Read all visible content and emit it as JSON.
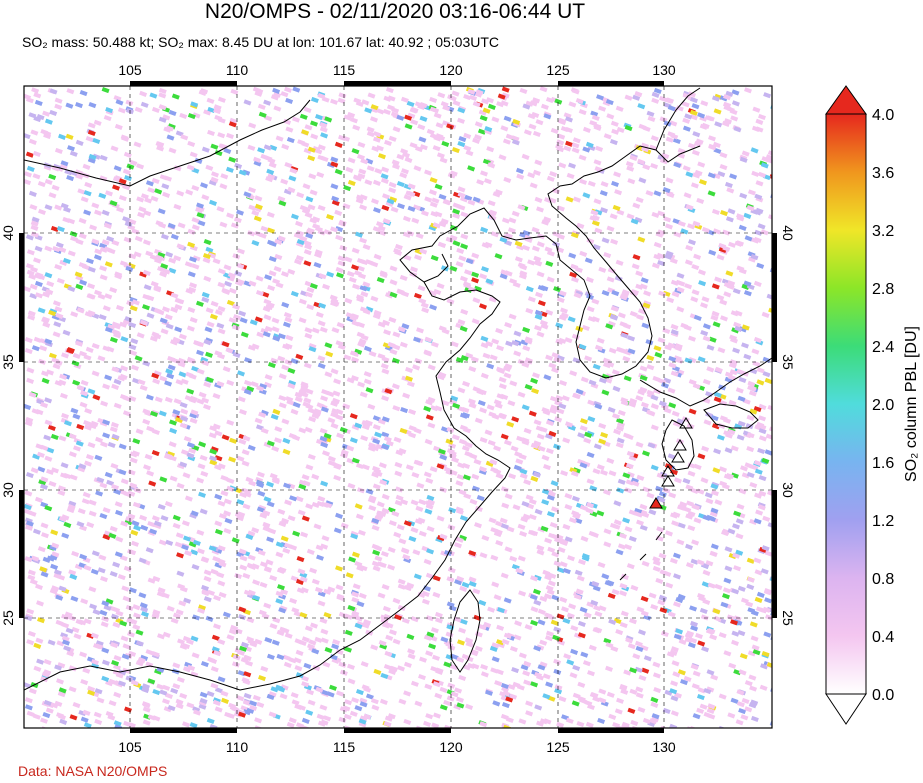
{
  "header": {
    "title": "N20/OMPS - 02/11/2020 03:16-06:44 UT",
    "subtitle": "SO₂ mass: 50.488 kt; SO₂ max: 8.45 DU at lon: 101.67 lat: 40.92 ; 05:03UTC"
  },
  "map": {
    "lon_range": [
      100,
      135
    ],
    "lat_range": [
      20,
      45
    ],
    "lon_ticks": [
      "105",
      "110",
      "115",
      "120",
      "125",
      "130"
    ],
    "lat_ticks": [
      "40",
      "35",
      "30",
      "25"
    ],
    "gridlines": "dashed",
    "volcano_markers": "triangle-icon"
  },
  "colorbar": {
    "title": "SO₂ column PBL [DU]",
    "ticks": [
      "4.0",
      "3.6",
      "3.2",
      "2.8",
      "2.4",
      "2.0",
      "1.6",
      "1.2",
      "0.8",
      "0.4",
      "0.0"
    ],
    "range": [
      0,
      4
    ],
    "colors": [
      "#ffffff",
      "#f4c6f0",
      "#c6b4f0",
      "#8ca0f0",
      "#64c8f0",
      "#40e6b4",
      "#3cdc3c",
      "#c8e628",
      "#f0dc28",
      "#f08c1e",
      "#e6281e"
    ]
  },
  "footer": {
    "source": "Data: NASA N20/OMPS"
  }
}
